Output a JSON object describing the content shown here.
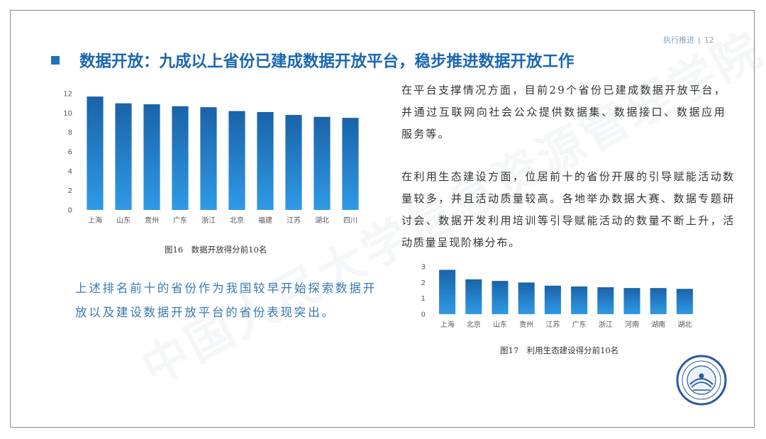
{
  "header": {
    "section": "执行推进",
    "page_number": "12"
  },
  "title": "数据开放：九成以上省份已建成数据开放平台，稳步推进数据开放工作",
  "watermark": "中国人民大学信息资源管理学院",
  "paragraphs": {
    "platform": "在平台支撑情况方面，目前29个省份已建成数据开放平台，并通过互联网向社会公众提供数据集、数据接口、数据应用服务等。",
    "ecosystem": "在利用生态建设方面，位居前十的省份开展的引导赋能活动数量较多，并且活动质量较高。各地举办数据大赛、数据专题研讨会、数据开发利用培训等引导赋能活动的数量不断上升，活动质量呈现阶梯分布。",
    "top_ten": "上述排名前十的省份作为我国较早开始探索数据开放以及建设数据开放平台的省份表现突出。"
  },
  "colors": {
    "accent": "#1e73b8",
    "bar_top": "#1a63a8",
    "bar_bottom": "#2f9ae6",
    "left_text": "#3a7ab0"
  },
  "chart_data": [
    {
      "type": "bar",
      "title": "图16　数据开放得分前10名",
      "categories": [
        "上海",
        "山东",
        "贵州",
        "广东",
        "浙江",
        "北京",
        "福建",
        "江苏",
        "湖北",
        "四川"
      ],
      "values": [
        11.7,
        11.0,
        10.9,
        10.7,
        10.6,
        10.2,
        10.1,
        9.8,
        9.6,
        9.5
      ],
      "ylim": [
        0,
        12
      ],
      "yticks": [
        "0",
        "2",
        "4",
        "6",
        "8",
        "10",
        "12"
      ],
      "xlabel": "",
      "ylabel": "",
      "grid": false
    },
    {
      "type": "bar",
      "title": "图17　利用生态建设得分前10名",
      "categories": [
        "上海",
        "北京",
        "山东",
        "贵州",
        "江苏",
        "广东",
        "浙江",
        "河南",
        "湖南",
        "湖北"
      ],
      "values": [
        2.8,
        2.2,
        2.1,
        2.0,
        1.8,
        1.75,
        1.7,
        1.65,
        1.65,
        1.6
      ],
      "ylim": [
        0,
        3
      ],
      "yticks": [
        "0",
        "1",
        "2",
        "3"
      ],
      "xlabel": "",
      "ylabel": "",
      "grid": false
    }
  ]
}
